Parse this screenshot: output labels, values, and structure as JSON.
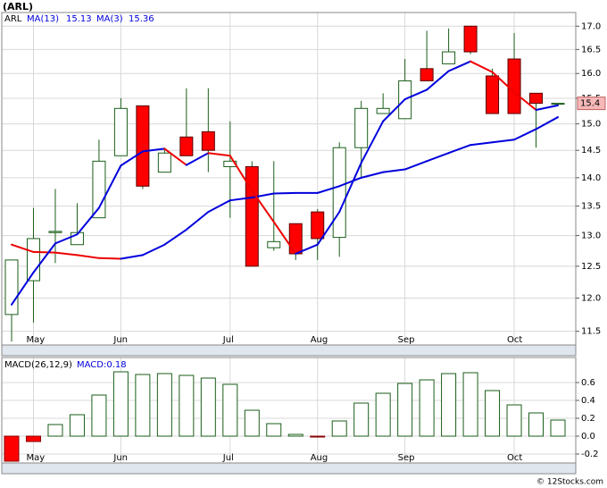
{
  "title": "(ARL)",
  "source": "© 12Stocks.com",
  "chart_data": [
    {
      "type": "candlestick",
      "symbol": "ARL",
      "categories": [
        null,
        "May",
        null,
        null,
        null,
        "Jun",
        null,
        null,
        null,
        null,
        "Jul",
        null,
        null,
        null,
        "Aug",
        null,
        null,
        null,
        "Sep",
        null,
        null,
        null,
        null,
        "Oct",
        null,
        null
      ],
      "series": [
        {
          "name": "ARL",
          "up_color": "#1a5e1a",
          "down_color": "#ff0000",
          "open": [
            11.75,
            12.27,
            13.05,
            12.85,
            13.3,
            14.4,
            15.35,
            14.1,
            14.75,
            14.85,
            14.2,
            14.2,
            12.8,
            13.2,
            13.4,
            12.97,
            14.55,
            15.2,
            15.1,
            16.1,
            16.2,
            17.0,
            15.95,
            16.3,
            15.6,
            15.4
          ],
          "high": [
            12.6,
            13.47,
            13.8,
            13.55,
            14.7,
            15.5,
            15.35,
            14.55,
            15.7,
            15.7,
            15.05,
            14.3,
            14.3,
            13.2,
            13.45,
            14.65,
            15.45,
            15.6,
            16.3,
            16.9,
            16.95,
            17.0,
            16.1,
            16.85,
            15.6,
            15.4
          ],
          "low": [
            11.35,
            11.63,
            12.55,
            12.85,
            13.3,
            14.4,
            13.8,
            14.1,
            14.4,
            14.1,
            13.3,
            12.5,
            12.75,
            12.6,
            12.6,
            12.65,
            14.0,
            15.2,
            15.1,
            15.85,
            16.2,
            16.4,
            15.2,
            15.2,
            14.55,
            15.4
          ],
          "close": [
            12.6,
            12.95,
            13.07,
            13.05,
            14.3,
            15.3,
            13.85,
            14.45,
            14.4,
            14.5,
            14.3,
            12.5,
            12.9,
            12.7,
            12.95,
            14.55,
            15.3,
            15.3,
            15.85,
            15.85,
            16.45,
            16.45,
            15.2,
            15.2,
            15.4,
            15.4
          ]
        }
      ],
      "moving_averages": [
        {
          "name": "MA(13)",
          "legend_value": 15.13,
          "values": [
            12.85,
            12.73,
            12.72,
            12.68,
            12.63,
            12.62,
            12.68,
            12.85,
            13.1,
            13.4,
            13.6,
            13.65,
            13.72,
            13.73,
            13.73,
            13.85,
            14.0,
            14.1,
            14.15,
            14.3,
            14.45,
            14.6,
            14.65,
            14.7,
            14.9,
            15.13
          ]
        },
        {
          "name": "MA(3)",
          "legend_value": 15.36,
          "values": [
            11.9,
            12.4,
            12.87,
            13.02,
            13.47,
            14.22,
            14.48,
            14.53,
            14.23,
            14.45,
            14.4,
            13.77,
            13.23,
            12.7,
            12.85,
            13.4,
            14.27,
            15.05,
            15.48,
            15.67,
            16.05,
            16.25,
            16.03,
            15.62,
            15.27,
            15.36
          ]
        }
      ],
      "ma_rising_color": "#0000dd",
      "ma_falling_color": "#ee0000",
      "last_price": {
        "value": 15.4,
        "label": "15.4"
      },
      "ylim": [
        11.3,
        17.3
      ],
      "yticks": [
        {
          "value": 11.5,
          "label": "11.5"
        },
        {
          "value": 12,
          "label": "12.0"
        },
        12.5,
        {
          "value": 13,
          "label": "13.0"
        },
        13.5,
        {
          "value": 14,
          "label": "14.0"
        },
        14.5,
        {
          "value": 15,
          "label": "15.0"
        },
        15.5,
        {
          "value": 16,
          "label": "16.0"
        },
        16.5,
        {
          "value": 17,
          "label": "17.0"
        }
      ],
      "log_scale": true,
      "grid": true
    },
    {
      "type": "bar",
      "legend": "MACD(26,12,9)",
      "legend_value": {
        "value": 0.18,
        "label": "MACD:0.18"
      },
      "categories": [
        null,
        "May",
        null,
        null,
        null,
        "Jun",
        null,
        null,
        null,
        null,
        "Jul",
        null,
        null,
        null,
        "Aug",
        null,
        null,
        null,
        "Sep",
        null,
        null,
        null,
        null,
        "Oct",
        null,
        null
      ],
      "values": [
        -0.28,
        -0.06,
        0.13,
        0.24,
        0.46,
        0.72,
        0.69,
        0.7,
        0.68,
        0.65,
        0.58,
        0.29,
        0.14,
        0.02,
        -0.01,
        0.17,
        0.37,
        0.48,
        0.59,
        0.63,
        0.7,
        0.71,
        0.51,
        0.35,
        0.26,
        0.18
      ],
      "positive_color": "#1a5e1a",
      "negative_color": "#ff0000",
      "ylim": [
        -0.3,
        0.88
      ],
      "yticks": [
        -0.2,
        {
          "value": 0,
          "label": "0.0"
        },
        0.2,
        0.4,
        0.6
      ],
      "grid": true
    }
  ]
}
